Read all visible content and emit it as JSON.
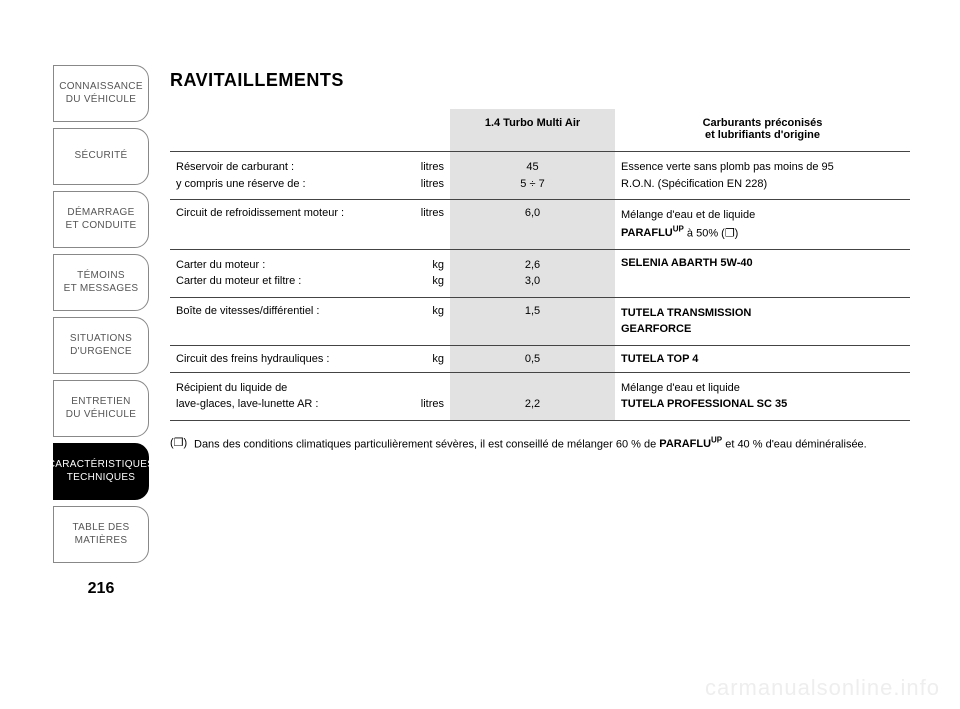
{
  "sidebar": {
    "tabs": [
      {
        "label": "CONNAISSANCE\nDU VÉHICULE",
        "active": false
      },
      {
        "label": "SÉCURITÉ",
        "active": false
      },
      {
        "label": "DÉMARRAGE\nET CONDUITE",
        "active": false
      },
      {
        "label": "TÉMOINS\nET MESSAGES",
        "active": false
      },
      {
        "label": "SITUATIONS\nD'URGENCE",
        "active": false
      },
      {
        "label": "ENTRETIEN\nDU VÉHICULE",
        "active": false
      },
      {
        "label": "CARACTÉRISTIQUES\nTECHNIQUES",
        "active": true
      },
      {
        "label": "TABLE DES\nMATIÈRES",
        "active": false
      }
    ]
  },
  "title": "RAVITAILLEMENTS",
  "table": {
    "headers": {
      "col1": "",
      "col2": "1.4 Turbo Multi Air",
      "col3_l1": "Carburants préconisés",
      "col3_l2": "et lubrifiants d'origine"
    },
    "rows": [
      {
        "desc_l1": "Réservoir de carburant :",
        "desc_l2": "y compris une réserve de :",
        "unit_l1": "litres",
        "unit_l2": "litres",
        "val_l1": "45",
        "val_l2": "5 ÷ 7",
        "lub_l1": "Essence verte sans plomb pas moins de 95",
        "lub_l2": "R.O.N. (Spécification EN 228)"
      },
      {
        "desc_l1": "Circuit de refroidissement moteur :",
        "unit_l1": "litres",
        "val_l1": "6,0",
        "lub_l1": "Mélange d'eau et de liquide",
        "lub_l2_pre": "PARAFLU",
        "lub_l2_sup": "UP",
        "lub_l2_post": " à 50% (❒)"
      },
      {
        "desc_l1": "Carter du moteur :",
        "desc_l2": "Carter du moteur et filtre :",
        "unit_l1": "kg",
        "unit_l2": "kg",
        "val_l1": "2,6",
        "val_l2": "3,0",
        "lub_l1_bold": "SELENIA ABARTH 5W-40"
      },
      {
        "desc_l1": "Boîte de vitesses/différentiel :",
        "unit_l1": "kg",
        "val_l1": "1,5",
        "lub_l1_bold": "TUTELA TRANSMISSION",
        "lub_l2_bold": "GEARFORCE"
      },
      {
        "desc_l1": "Circuit des freins hydrauliques :",
        "unit_l1": "kg",
        "val_l1": "0,5",
        "lub_l1_bold": "TUTELA TOP 4"
      },
      {
        "desc_l1": "Récipient du liquide de",
        "desc_l2": "lave-glaces, lave-lunette AR :",
        "unit_l1": "",
        "unit_l2": "litres",
        "val_l1": "",
        "val_l2": "2,2",
        "lub_l1": "Mélange d'eau et liquide",
        "lub_l2_bold": "TUTELA PROFESSIONAL SC 35"
      }
    ]
  },
  "note": {
    "symbol": "(❒)",
    "text_pre": "Dans des conditions climatiques particulièrement sévères, il est conseillé de mélanger 60 % de ",
    "text_bold": "PARAFLU",
    "text_sup": "UP",
    "text_post": " et 40 % d'eau déminéralisée."
  },
  "page_number": "216",
  "watermark": "carmanualsonline.info",
  "colors": {
    "page_bg": "#ffffff",
    "text": "#000000",
    "tab_border": "#888888",
    "tab_text": "#555555",
    "tab_active_bg": "#000000",
    "tab_active_text": "#ffffff",
    "value_col_bg": "#e2e2e2",
    "row_border": "#444444",
    "watermark": "#eeeeee"
  }
}
